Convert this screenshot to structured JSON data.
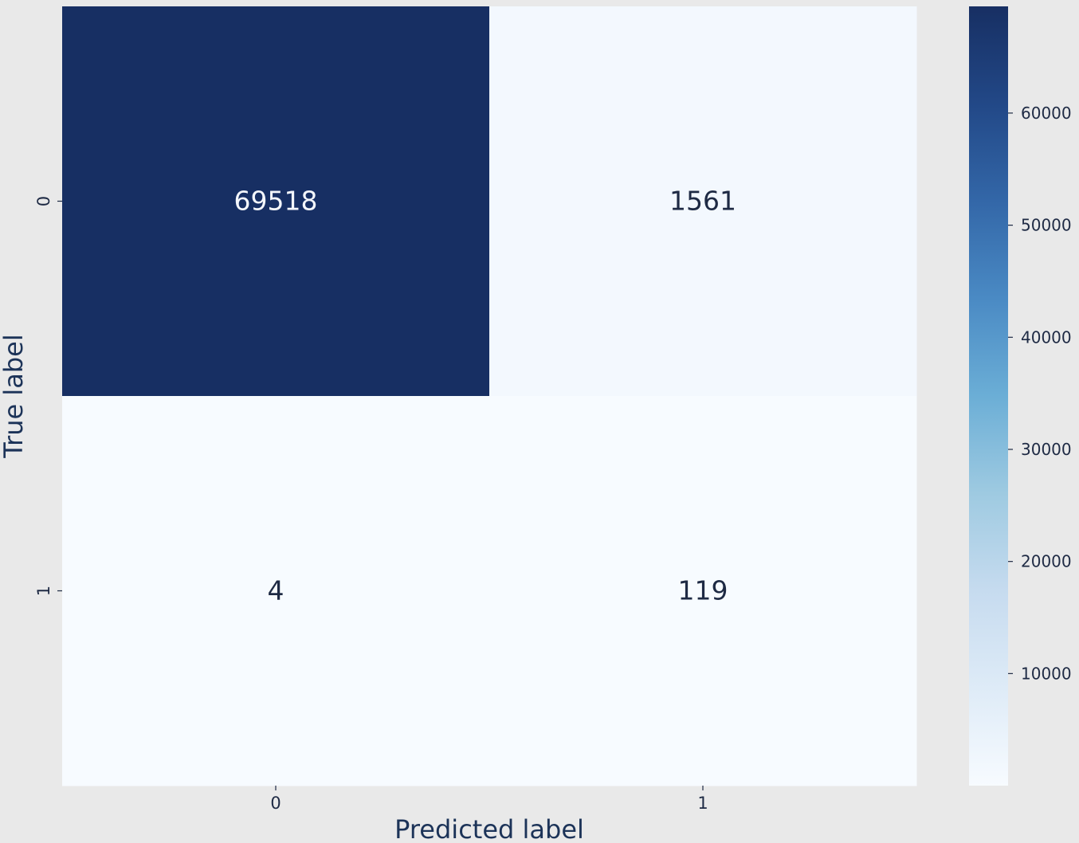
{
  "chart_data": {
    "type": "heatmap",
    "title": "",
    "xlabel": "Predicted label",
    "ylabel": "True label",
    "x_categories": [
      "0",
      "1"
    ],
    "y_categories": [
      "0",
      "1"
    ],
    "values": [
      [
        69518,
        1561
      ],
      [
        4,
        119
      ]
    ],
    "cell_labels": [
      [
        "69518",
        "1561"
      ],
      [
        "4",
        "119"
      ]
    ],
    "colormap": "Blues",
    "colorbar": {
      "vmin": 4,
      "vmax": 69518,
      "ticks": [
        10000,
        20000,
        30000,
        40000,
        50000,
        60000
      ],
      "tick_labels": [
        "10000",
        "20000",
        "30000",
        "40000",
        "50000",
        "60000"
      ]
    },
    "colors": {
      "low": "#f7fbff",
      "high": "#172f63",
      "text_on_dark": "#f3f6fb",
      "text_on_light": "#1e2a44"
    },
    "grid": false,
    "legend": "colorbar-right"
  }
}
